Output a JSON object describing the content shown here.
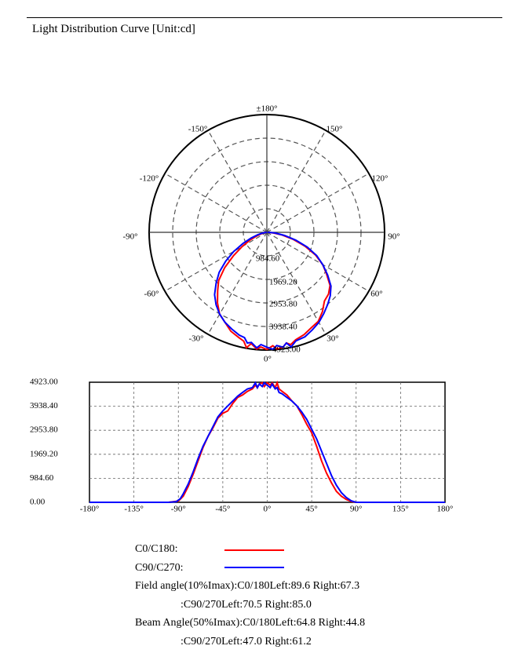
{
  "page": {
    "title": "Light Distribution Curve [Unit:cd]"
  },
  "chart_data": [
    {
      "type": "polar",
      "angle_labels": [
        "±180°",
        "150°",
        "120°",
        "90°",
        "60°",
        "30°",
        "0°",
        "-30°",
        "-60°",
        "-90°",
        "-120°",
        "-150°"
      ],
      "radial_tick_labels": [
        "984.60",
        "1969.20",
        "2953.80",
        "3938.40",
        "4923.00"
      ],
      "rmax": 4923.0,
      "grid": true
    },
    {
      "type": "line",
      "xlim": [
        -180,
        180
      ],
      "ylim": [
        0,
        4923
      ],
      "x_tick_labels": [
        "-180°",
        "-135°",
        "-90°",
        "-45°",
        "0°",
        "45°",
        "90°",
        "135°",
        "180°"
      ],
      "y_tick_labels": [
        "0.00",
        "984.60",
        "1969.20",
        "2953.80",
        "3938.40",
        "4923.00"
      ],
      "grid": true,
      "series": [
        {
          "name": "C0/C180:",
          "color": "#ff0000",
          "points": [
            [
              -180,
              0
            ],
            [
              -100,
              0
            ],
            [
              -90,
              50
            ],
            [
              -85,
              250
            ],
            [
              -80,
              650
            ],
            [
              -75,
              1150
            ],
            [
              -70,
              1700
            ],
            [
              -65,
              2250
            ],
            [
              -60,
              2700
            ],
            [
              -55,
              3050
            ],
            [
              -50,
              3450
            ],
            [
              -45,
              3650
            ],
            [
              -40,
              3750
            ],
            [
              -35,
              4050
            ],
            [
              -30,
              4300
            ],
            [
              -25,
              4400
            ],
            [
              -20,
              4550
            ],
            [
              -15,
              4650
            ],
            [
              -12,
              4800
            ],
            [
              -10,
              4700
            ],
            [
              -8,
              4850
            ],
            [
              -5,
              4900
            ],
            [
              -3,
              4750
            ],
            [
              0,
              4900
            ],
            [
              3,
              4800
            ],
            [
              5,
              4900
            ],
            [
              8,
              4700
            ],
            [
              10,
              4900
            ],
            [
              12,
              4650
            ],
            [
              15,
              4550
            ],
            [
              20,
              4400
            ],
            [
              25,
              4150
            ],
            [
              30,
              3950
            ],
            [
              35,
              3600
            ],
            [
              40,
              3200
            ],
            [
              45,
              2850
            ],
            [
              50,
              2300
            ],
            [
              55,
              1700
            ],
            [
              60,
              1200
            ],
            [
              65,
              800
            ],
            [
              70,
              450
            ],
            [
              75,
              250
            ],
            [
              80,
              120
            ],
            [
              85,
              40
            ],
            [
              90,
              0
            ],
            [
              180,
              0
            ]
          ]
        },
        {
          "name": "C90/C270:",
          "color": "#0000ff",
          "points": [
            [
              -180,
              0
            ],
            [
              -100,
              0
            ],
            [
              -92,
              30
            ],
            [
              -88,
              150
            ],
            [
              -85,
              350
            ],
            [
              -80,
              750
            ],
            [
              -75,
              1250
            ],
            [
              -70,
              1800
            ],
            [
              -65,
              2300
            ],
            [
              -60,
              2700
            ],
            [
              -55,
              3100
            ],
            [
              -50,
              3500
            ],
            [
              -45,
              3750
            ],
            [
              -40,
              3950
            ],
            [
              -35,
              4150
            ],
            [
              -30,
              4350
            ],
            [
              -25,
              4500
            ],
            [
              -20,
              4650
            ],
            [
              -15,
              4700
            ],
            [
              -12,
              4900
            ],
            [
              -10,
              4700
            ],
            [
              -8,
              4850
            ],
            [
              -5,
              4750
            ],
            [
              -3,
              4900
            ],
            [
              0,
              4800
            ],
            [
              3,
              4700
            ],
            [
              5,
              4850
            ],
            [
              8,
              4650
            ],
            [
              10,
              4700
            ],
            [
              12,
              4500
            ],
            [
              15,
              4450
            ],
            [
              20,
              4300
            ],
            [
              25,
              4150
            ],
            [
              30,
              3950
            ],
            [
              35,
              3700
            ],
            [
              40,
              3400
            ],
            [
              45,
              3000
            ],
            [
              50,
              2600
            ],
            [
              55,
              2100
            ],
            [
              60,
              1600
            ],
            [
              65,
              1100
            ],
            [
              70,
              700
            ],
            [
              75,
              400
            ],
            [
              80,
              200
            ],
            [
              85,
              60
            ],
            [
              90,
              0
            ],
            [
              180,
              0
            ]
          ]
        }
      ]
    }
  ],
  "legend": {
    "c0_label": "C0/C180:",
    "c0_color": "#ff0000",
    "c90_label": "C90/C270:",
    "c90_color": "#0000ff"
  },
  "info": {
    "field_c0": "Field angle(10%Imax):C0/180Left:89.6 Right:67.3",
    "field_c90": ":C90/270Left:70.5 Right:85.0",
    "beam_c0": "Beam Angle(50%Imax):C0/180Left:64.8 Right:44.8",
    "beam_c90": ":C90/270Left:47.0 Right:61.2"
  }
}
